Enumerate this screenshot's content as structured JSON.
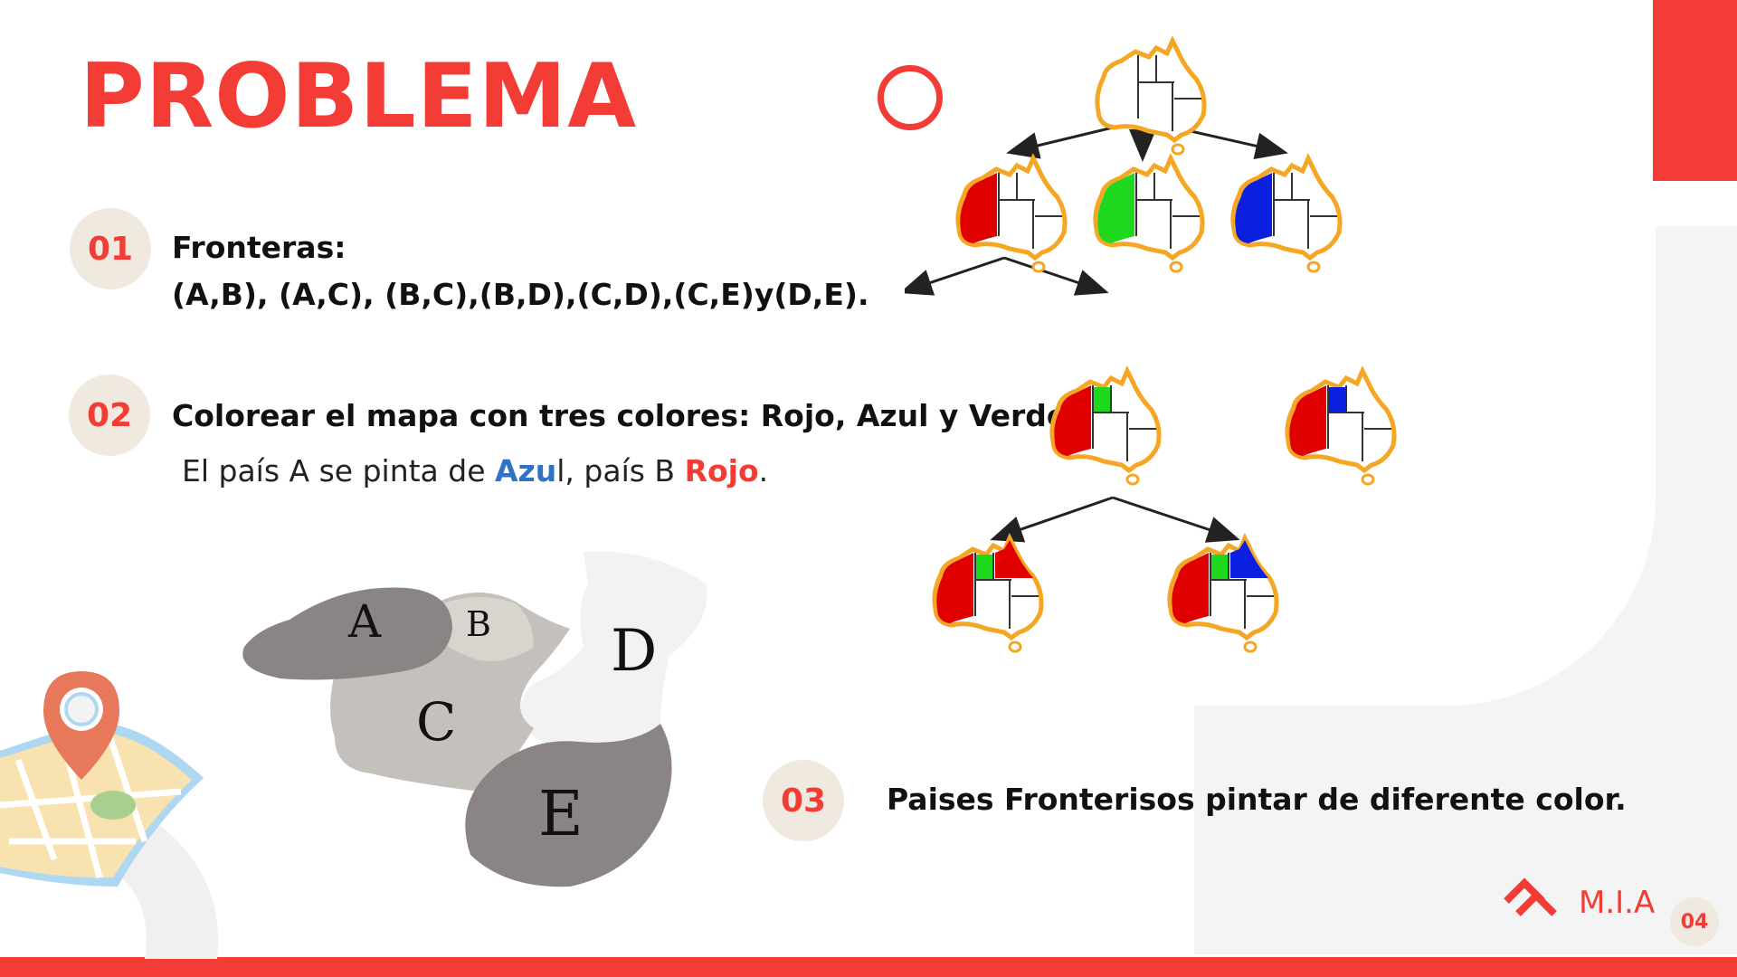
{
  "title": "PROBLEMA",
  "items": [
    {
      "number": "01",
      "heading": "Fronteras:",
      "detail": "(A,B), (A,C), (B,C),(B,D),(C,D),(C,E)y(D,E)."
    },
    {
      "number": "02",
      "heading": "Colorear el mapa con tres colores: Rojo, Azul y Verde.",
      "detail_prefix": "El país A se pinta de ",
      "detail_blue": "Azu",
      "detail_mid": "l, país B ",
      "detail_red": "Rojo",
      "detail_suffix": "."
    },
    {
      "number": "03",
      "heading": "Paises Fronterisos pintar de diferente color."
    }
  ],
  "regions": {
    "a": "A",
    "b": "B",
    "c": "C",
    "d": "D",
    "e": "E"
  },
  "brand": {
    "name": "M.I.A",
    "page": "04"
  },
  "tree": {
    "root": "uncolored",
    "level1": [
      "red",
      "green",
      "blue"
    ],
    "level2": [
      "red-green",
      "red-blue"
    ],
    "level3": [
      "red-green-red",
      "red-green-blue"
    ]
  },
  "colors": {
    "accent": "#f23c35",
    "blue_text": "#2f73c9",
    "badge_bg": "#efe9df"
  }
}
